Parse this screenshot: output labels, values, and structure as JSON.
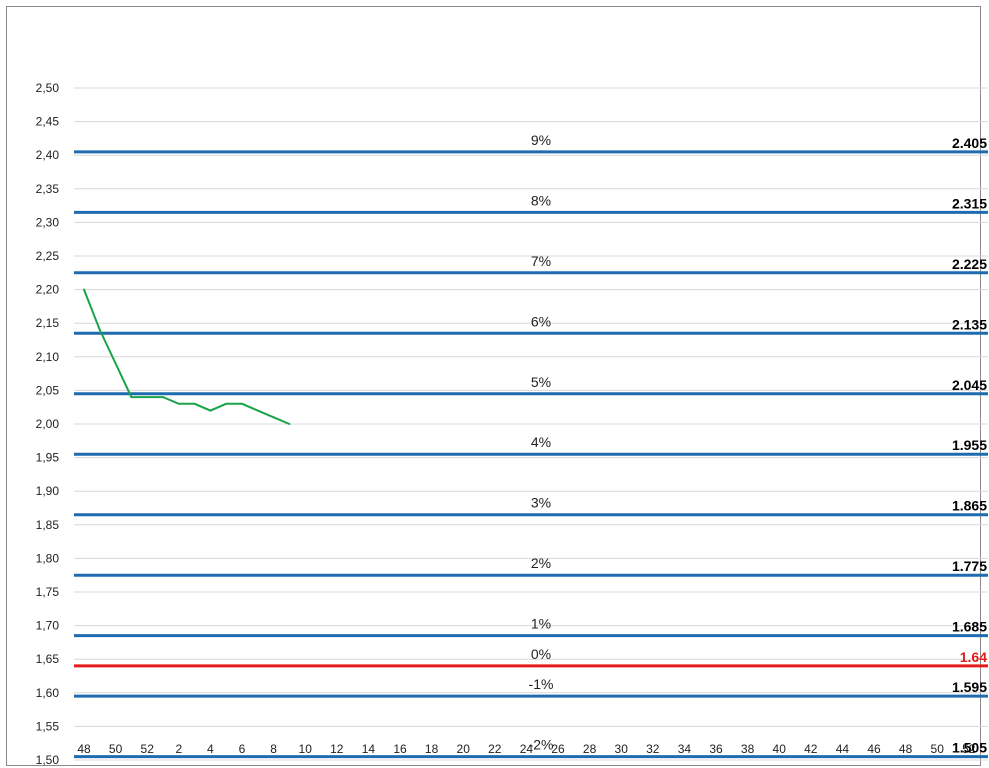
{
  "chart_data": {
    "type": "line",
    "title": "",
    "xlabel": "",
    "ylabel": "",
    "ylim": [
      1.5,
      2.5
    ],
    "y_ticks": [
      "1,50",
      "1,55",
      "1,60",
      "1,65",
      "1,70",
      "1,75",
      "1,80",
      "1,85",
      "1,90",
      "1,95",
      "2,00",
      "2,05",
      "2,10",
      "2,15",
      "2,20",
      "2,25",
      "2,30",
      "2,35",
      "2,40",
      "2,45",
      "2,50"
    ],
    "x_tick_labels": [
      "48",
      "50",
      "52",
      "2",
      "4",
      "6",
      "8",
      "10",
      "12",
      "14",
      "16",
      "18",
      "20",
      "22",
      "24",
      "26",
      "28",
      "30",
      "32",
      "34",
      "36",
      "38",
      "40",
      "42",
      "44",
      "46",
      "48",
      "50",
      "52"
    ],
    "grid": "horizontal",
    "series": [
      {
        "color": "#1aa34a",
        "x": [
          "48",
          "49",
          "50",
          "51",
          "52",
          "1",
          "2",
          "3",
          "4",
          "5",
          "6",
          "7",
          "8",
          "9"
        ],
        "values": [
          2.2,
          2.14,
          2.09,
          2.04,
          2.04,
          2.04,
          2.03,
          2.03,
          2.02,
          2.03,
          2.03,
          2.02,
          2.01,
          2.0
        ]
      }
    ],
    "reference_lines": [
      {
        "percent": "9%",
        "value": 2.405,
        "label": "2.405",
        "color": "#1f6bb0"
      },
      {
        "percent": "8%",
        "value": 2.315,
        "label": "2.315",
        "color": "#1f6bb0"
      },
      {
        "percent": "7%",
        "value": 2.225,
        "label": "2.225",
        "color": "#1f6bb0"
      },
      {
        "percent": "6%",
        "value": 2.135,
        "label": "2.135",
        "color": "#1f6bb0"
      },
      {
        "percent": "5%",
        "value": 2.045,
        "label": "2.045",
        "color": "#1f6bb0"
      },
      {
        "percent": "4%",
        "value": 1.955,
        "label": "1.955",
        "color": "#1f6bb0"
      },
      {
        "percent": "3%",
        "value": 1.865,
        "label": "1.865",
        "color": "#1f6bb0"
      },
      {
        "percent": "2%",
        "value": 1.775,
        "label": "1.775",
        "color": "#1f6bb0"
      },
      {
        "percent": "1%",
        "value": 1.685,
        "label": "1.685",
        "color": "#1f6bb0"
      },
      {
        "percent": "0%",
        "value": 1.64,
        "label": "1.64",
        "color": "#e31b1b"
      },
      {
        "percent": "-1%",
        "value": 1.595,
        "label": "1.595",
        "color": "#1f6bb0"
      },
      {
        "percent": "-2%",
        "value": 1.505,
        "label": "1.505",
        "color": "#1f6bb0"
      }
    ],
    "colors": {
      "gridline": "#d9d9d9",
      "reference": "#1f6bb0",
      "zero_reference": "#e31b1b",
      "series": "#1aa34a"
    }
  }
}
